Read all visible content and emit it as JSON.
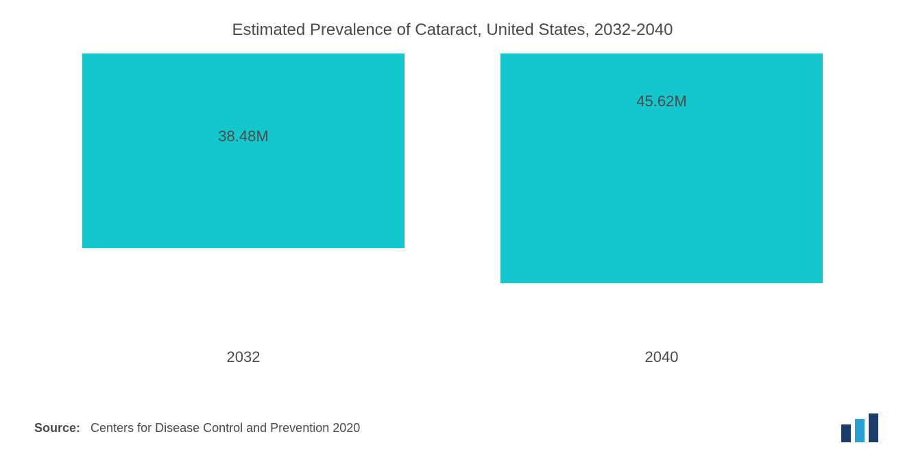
{
  "chart": {
    "type": "bar",
    "title": "Estimated Prevalence of Cataract, United States, 2032-2040",
    "title_fontsize": 24,
    "title_color": "#4a4a4a",
    "background_color": "#ffffff",
    "categories": [
      "2032",
      "2040"
    ],
    "values": [
      38.48,
      45.62
    ],
    "value_suffix": "M",
    "value_labels": [
      "38.48M",
      "45.62M"
    ],
    "bar_colors": [
      "#14c7cc",
      "#14c7cc"
    ],
    "bar_heights_pct": [
      66,
      78
    ],
    "value_label_bottom_pct": [
      66,
      78
    ],
    "label_fontsize": 22,
    "label_color": "#4a4a4a",
    "ylim": [
      0,
      58
    ],
    "bar_width": 1.0,
    "bar_gap": 140
  },
  "source": {
    "prefix": "Source:",
    "text": "Centers for Disease Control and Prevention 2020",
    "fontsize": 18,
    "color": "#4a4a4a"
  },
  "logo": {
    "bar_colors": [
      "#1b3b6f",
      "#2a9fd6",
      "#1b3b6f"
    ]
  }
}
